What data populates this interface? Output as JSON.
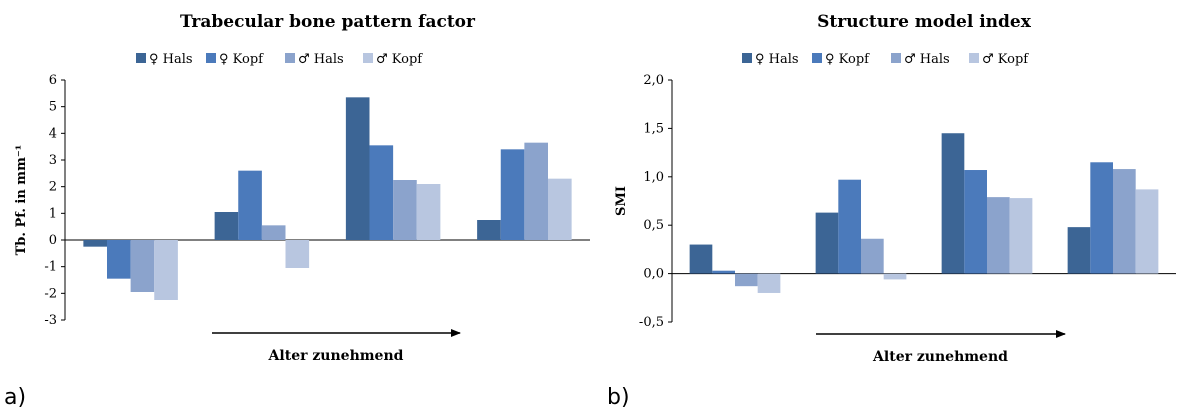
{
  "colors": [
    "#3C6595",
    "#4B7ABB",
    "#8BA3CC",
    "#B8C6E0"
  ],
  "chart_data": [
    {
      "type": "bar",
      "panel_label": "a)",
      "title": "Trabecular bone pattern factor",
      "ylabel": "Tb. Pf. in mm⁻¹",
      "xlabel": "Alter zunehmend",
      "categories": [
        "",
        "",
        "",
        ""
      ],
      "ylim": [
        -3,
        6
      ],
      "yticks": [
        6,
        5,
        4,
        3,
        2,
        1,
        0,
        -1,
        -2,
        -3
      ],
      "ytick_labels": [
        "6",
        "5",
        "4",
        "3",
        "2",
        "1",
        "0",
        "-1",
        "-2",
        "-3"
      ],
      "legend_position": "top",
      "grid": false,
      "series": [
        {
          "name": "♀ Hals",
          "values": [
            -0.25,
            1.05,
            5.35,
            0.75
          ]
        },
        {
          "name": "♀ Kopf",
          "values": [
            -1.45,
            2.6,
            3.55,
            3.4
          ]
        },
        {
          "name": "♂ Hals",
          "values": [
            -1.95,
            0.55,
            2.25,
            3.65
          ]
        },
        {
          "name": "♂ Kopf",
          "values": [
            -2.25,
            -1.05,
            2.1,
            2.3
          ]
        }
      ]
    },
    {
      "type": "bar",
      "panel_label": "b)",
      "title": "Structure model index",
      "ylabel": "SMI",
      "xlabel": "Alter zunehmend",
      "categories": [
        "",
        "",
        "",
        ""
      ],
      "ylim": [
        -0.5,
        2.0
      ],
      "yticks": [
        2.0,
        1.5,
        1.0,
        0.5,
        0.0,
        -0.5
      ],
      "ytick_labels": [
        "2,0",
        "1,5",
        "1,0",
        "0,5",
        "0,0",
        "-0,5"
      ],
      "legend_position": "top",
      "grid": false,
      "series": [
        {
          "name": "♀ Hals",
          "values": [
            0.3,
            0.63,
            1.45,
            0.48
          ]
        },
        {
          "name": "♀ Kopf",
          "values": [
            0.03,
            0.97,
            1.07,
            1.15
          ]
        },
        {
          "name": "♂ Hals",
          "values": [
            -0.13,
            0.36,
            0.79,
            1.08
          ]
        },
        {
          "name": "♂ Kopf",
          "values": [
            -0.2,
            -0.06,
            0.78,
            0.87
          ]
        }
      ]
    }
  ]
}
